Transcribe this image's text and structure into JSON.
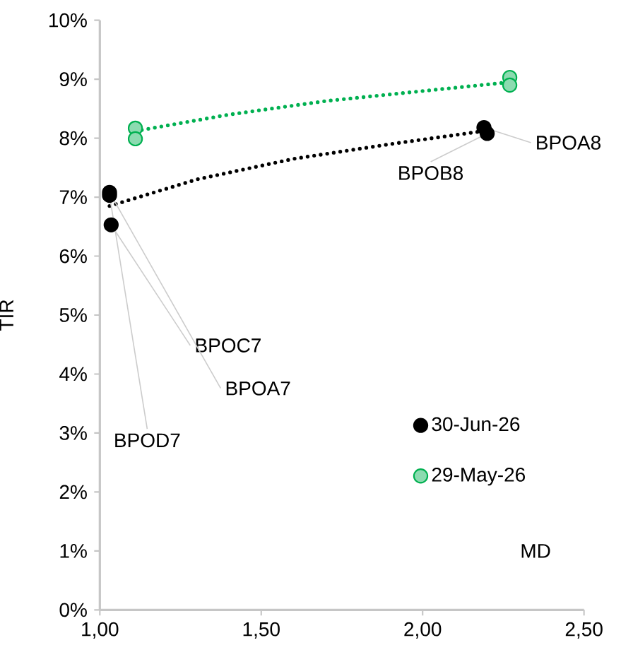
{
  "chart_data": {
    "type": "scatter",
    "xlabel": "MD",
    "ylabel": "TIR",
    "xlim": [
      1.0,
      2.5
    ],
    "xticks": [
      {
        "value": 1.0,
        "label": "1,00"
      },
      {
        "value": 1.5,
        "label": "1,50"
      },
      {
        "value": 2.0,
        "label": "2,00"
      },
      {
        "value": 2.5,
        "label": "2,50"
      }
    ],
    "ylim": [
      0,
      10
    ],
    "yticks": [
      {
        "value": 0,
        "label": "0%"
      },
      {
        "value": 1,
        "label": "1%"
      },
      {
        "value": 2,
        "label": "2%"
      },
      {
        "value": 3,
        "label": "3%"
      },
      {
        "value": 4,
        "label": "4%"
      },
      {
        "value": 5,
        "label": "5%"
      },
      {
        "value": 6,
        "label": "6%"
      },
      {
        "value": 7,
        "label": "7%"
      },
      {
        "value": 8,
        "label": "8%"
      },
      {
        "value": 9,
        "label": "9%"
      },
      {
        "value": 10,
        "label": "10%"
      }
    ],
    "legend": "right",
    "grid": false,
    "series": [
      {
        "name": "30-Jun-26",
        "marker": "circle",
        "color": "#000000",
        "x": [
          1.03,
          1.03,
          1.035,
          2.19,
          2.2
        ],
        "values": [
          7.08,
          7.03,
          6.53,
          8.18,
          8.08
        ]
      },
      {
        "name": "29-May-26",
        "marker": "circle",
        "color": "#00b050",
        "x": [
          1.11,
          1.11,
          2.27,
          2.27
        ],
        "values": [
          8.17,
          7.99,
          9.03,
          8.9
        ]
      },
      {
        "type": "line",
        "marker": "none",
        "line_style": "dotted",
        "color": "#000000",
        "x": [
          1.03,
          1.3,
          1.6,
          1.9,
          2.2
        ],
        "values": [
          6.85,
          7.3,
          7.65,
          7.9,
          8.13
        ]
      },
      {
        "type": "line",
        "marker": "none",
        "line_style": "dotted",
        "color": "#00b050",
        "x": [
          1.11,
          1.4,
          1.7,
          2.0,
          2.27
        ],
        "values": [
          8.12,
          8.4,
          8.63,
          8.8,
          8.95
        ]
      }
    ],
    "annotations": [
      {
        "text": "BPOC7",
        "x": 1.035,
        "y": 6.53
      },
      {
        "text": "BPOA7",
        "x": 1.03,
        "y": 7.08
      },
      {
        "text": "BPOD7",
        "x": 1.03,
        "y": 7.03
      },
      {
        "text": "BPOB8",
        "x": 2.2,
        "y": 8.08
      },
      {
        "text": "BPOA8",
        "x": 2.19,
        "y": 8.18
      }
    ]
  }
}
